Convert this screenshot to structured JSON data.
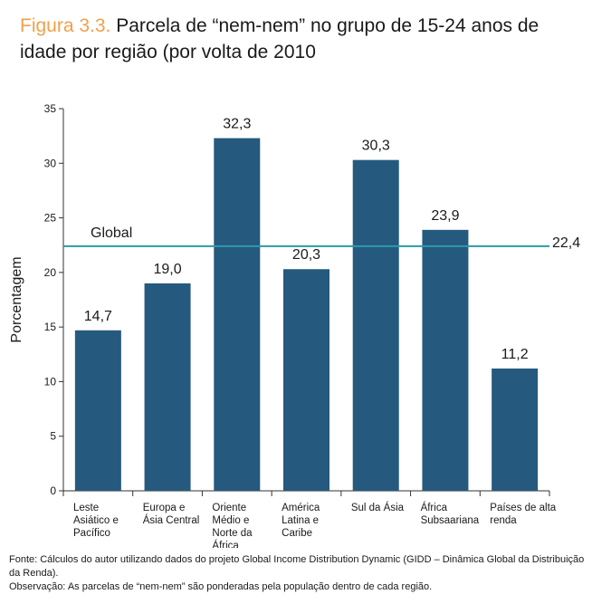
{
  "header": {
    "figure_label": "Figura 3.3.",
    "title_text": "Parcela de “nem-nem” no grupo de 15-24 anos de idade por região (por volta de 2010"
  },
  "chart_data": {
    "type": "bar",
    "categories": [
      [
        "Leste",
        "Asiático e",
        "Pacífico"
      ],
      [
        "Europa e",
        "Ásia Central"
      ],
      [
        "Oriente",
        "Médio e",
        "Norte da",
        "África"
      ],
      [
        "América",
        "Latina e",
        "Caribe"
      ],
      [
        "Sul da Ásia"
      ],
      [
        "África",
        "Subsaariana"
      ],
      [
        "Países de alta",
        "renda"
      ]
    ],
    "values": [
      14.7,
      19.0,
      32.3,
      20.3,
      30.3,
      23.9,
      11.2
    ],
    "value_labels": [
      "14,7",
      "19,0",
      "32,3",
      "20,3",
      "30,3",
      "23,9",
      "11,2"
    ],
    "ylabel": "Porcentagem",
    "ylim": [
      0,
      35
    ],
    "yticks": [
      0,
      5,
      10,
      15,
      20,
      25,
      30,
      35
    ],
    "grid": false,
    "bar_color": "#255a7e",
    "reference_line": {
      "label": "Global",
      "value": 22.4,
      "value_label": "22,4",
      "color": "#2b9aab"
    }
  },
  "notes": {
    "source": "Fonte: Cálculos do autor utilizando dados do projeto Global Income Distribution Dynamic (GIDD – Dinâmica Global da Distribuição da Renda).",
    "observation": "Observação: As parcelas de “nem-nem” são ponderadas pela população dentro de cada região."
  }
}
